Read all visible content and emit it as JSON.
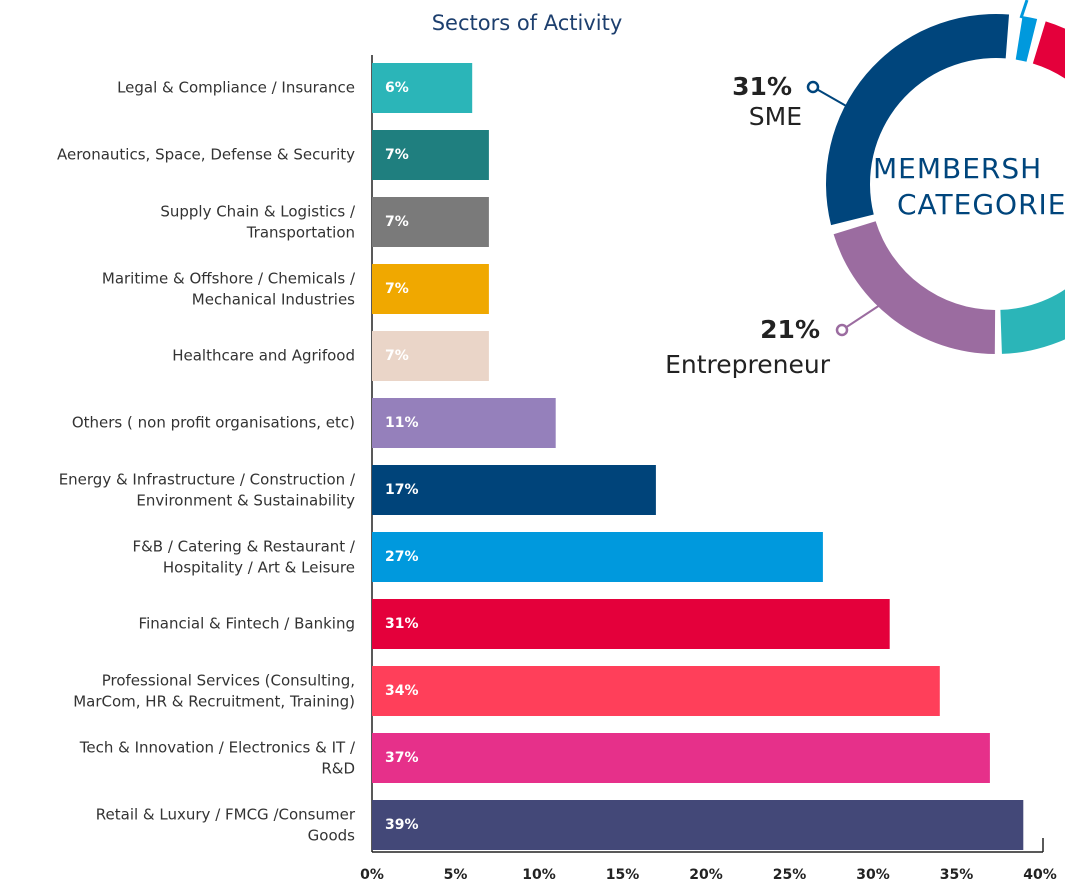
{
  "chart_data": [
    {
      "type": "barh",
      "title": "Sectors of Activity",
      "categories": [
        "Legal & Compliance / Insurance",
        "Aeronautics, Space, Defense & Security",
        "Supply Chain & Logistics /\nTransportation",
        "Maritime & Offshore / Chemicals /\nMechanical Industries",
        "Healthcare and Agrifood",
        "Others ( non profit organisations, etc)",
        "Energy & Infrastructure / Construction /\nEnvironment & Sustainability",
        "F&B / Catering & Restaurant /\nHospitality / Art & Leisure",
        "Financial & Fintech / Banking",
        "Professional Services (Consulting,\nMarCom, HR & Recruitment, Training)",
        "Tech & Innovation / Electronics & IT /\nR&D",
        "Retail & Luxury / FMCG /Consumer\nGoods"
      ],
      "values": [
        6,
        7,
        7,
        7,
        7,
        11,
        17,
        27,
        31,
        34,
        37,
        39
      ],
      "value_labels": [
        "6%",
        "7%",
        "7%",
        "7%",
        "7%",
        "11%",
        "17%",
        "27%",
        "31%",
        "34%",
        "37%",
        "39%"
      ],
      "colors": [
        "#2bb5b8",
        "#1f7f7f",
        "#7a7a7a",
        "#f0a800",
        "#ead5c8",
        "#9580bb",
        "#00447a",
        "#0099dd",
        "#e4003b",
        "#ff3f5a",
        "#e6308a",
        "#434878"
      ],
      "xlim": [
        0,
        40
      ],
      "xticks": [
        {
          "value": 0,
          "label": "0%"
        },
        {
          "value": 5,
          "label": "5%"
        },
        {
          "value": 10,
          "label": "10%"
        },
        {
          "value": 15,
          "label": "15%"
        },
        {
          "value": 20,
          "label": "20%"
        },
        {
          "value": 25,
          "label": "25%"
        },
        {
          "value": 30,
          "label": "30%"
        },
        {
          "value": 35,
          "label": "35%"
        },
        {
          "value": 40,
          "label": "40%"
        }
      ]
    },
    {
      "type": "donut",
      "title": [
        "MEMBERSH",
        "CATEGORIE"
      ],
      "categories": [
        "SME",
        "Entrepreneur"
      ],
      "values": [
        31,
        21
      ],
      "value_labels": [
        "31%",
        "21%"
      ],
      "colors": [
        "#00457c",
        "#9b6ca0"
      ]
    }
  ]
}
